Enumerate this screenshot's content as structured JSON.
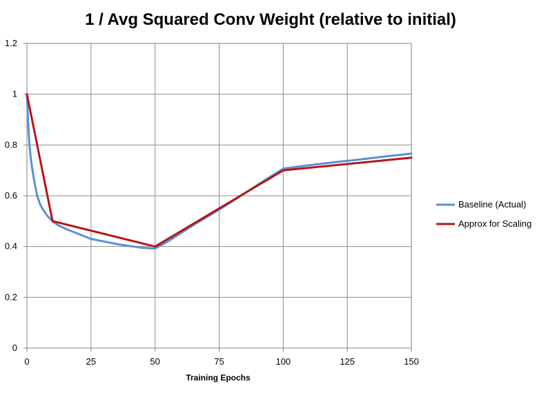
{
  "chart_data": {
    "type": "line",
    "title": "1 / Avg Squared Conv Weight (relative to initial)",
    "xlabel": "Training Epochs",
    "ylabel": "",
    "xlim": [
      0,
      150
    ],
    "ylim": [
      0,
      1.2
    ],
    "x_ticks": [
      0,
      25,
      50,
      75,
      100,
      125,
      150
    ],
    "y_ticks": [
      0,
      0.2,
      0.4,
      0.6,
      0.8,
      1,
      1.2
    ],
    "x_tick_labels": [
      "0",
      "25",
      "50",
      "75",
      "100",
      "125",
      "150"
    ],
    "y_tick_labels": [
      "0",
      "0.2",
      "0.4",
      "0.6",
      "0.8",
      "1",
      "1.2"
    ],
    "grid": true,
    "legend_position": "right",
    "series": [
      {
        "name": "Baseline (Actual)",
        "color": "#5B8FD6",
        "x": [
          0,
          0.5,
          1,
          1.5,
          2,
          3,
          4,
          5,
          6,
          7,
          8,
          9,
          10,
          12,
          15,
          20,
          25,
          30,
          35,
          40,
          45,
          50,
          55,
          60,
          65,
          70,
          75,
          80,
          85,
          90,
          95,
          100,
          110,
          120,
          130,
          140,
          150
        ],
        "y": [
          1.0,
          0.88,
          0.8,
          0.75,
          0.71,
          0.65,
          0.6,
          0.57,
          0.55,
          0.535,
          0.52,
          0.51,
          0.5,
          0.485,
          0.47,
          0.45,
          0.43,
          0.42,
          0.41,
          0.402,
          0.395,
          0.392,
          0.42,
          0.452,
          0.485,
          0.515,
          0.545,
          0.577,
          0.61,
          0.643,
          0.675,
          0.707,
          0.72,
          0.732,
          0.743,
          0.755,
          0.766
        ]
      },
      {
        "name": "Approx for Scaling",
        "color": "#B81414",
        "x": [
          0,
          5,
          10,
          50,
          100,
          150
        ],
        "y": [
          1.0,
          0.75,
          0.5,
          0.4,
          0.7,
          0.75
        ]
      }
    ]
  }
}
